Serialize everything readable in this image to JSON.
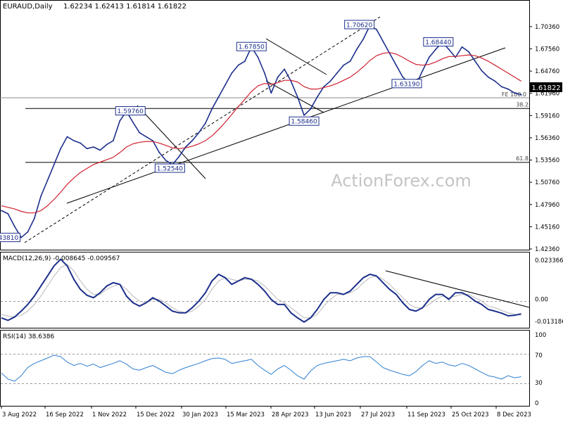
{
  "colors": {
    "price": "#1c2f8c",
    "ma": "#d0202e",
    "macd": "#1c2f8c",
    "signal": "#b8b8b8",
    "rsi": "#2f7fd0",
    "watermark": "#c4c4c4",
    "line": "#000000"
  },
  "chart_data": [
    {
      "type": "line",
      "title": "EURAUD,Daily",
      "ohlc_header": "1.62234 1.62413 1.61814 1.61822",
      "last_price": "1.61822",
      "watermark": "ActionForex.com",
      "ylim": [
        1.4236,
        1.7212
      ],
      "y_ticks": [
        "1.70360",
        "1.67560",
        "1.64760",
        "1.61960",
        "1.59160",
        "1.56360",
        "1.53560",
        "1.50760",
        "1.47960",
        "1.45160",
        "1.42360"
      ],
      "x_ticks": [
        "3 Aug 2022",
        "16 Sep 2022",
        "1 Nov 2022",
        "15 Dec 2022",
        "30 Jan 2023",
        "15 Mar 2023",
        "28 Apr 2023",
        "13 Jun 2023",
        "27 Jul 2023",
        "11 Sep 2023",
        "25 Oct 2023",
        "8 Dec 2023"
      ],
      "x": [
        0,
        5,
        10,
        15,
        20,
        25,
        30,
        35,
        40,
        45,
        50,
        55,
        60,
        65,
        70,
        75,
        80,
        85,
        90,
        95,
        100,
        105,
        110,
        115,
        120,
        125,
        130,
        135,
        140,
        145,
        150,
        155,
        160,
        165,
        170,
        175,
        180,
        185,
        190,
        195,
        200,
        205,
        210,
        215,
        220,
        225,
        230,
        235,
        240,
        245,
        250,
        255,
        260,
        265,
        270,
        275,
        280,
        285,
        290,
        295,
        300,
        305,
        310,
        315,
        320,
        325,
        330,
        335,
        340,
        345,
        350,
        355,
        360,
        365,
        370,
        375,
        380,
        385,
        390,
        395
      ],
      "series": [
        {
          "values": [
            1.472,
            1.468,
            1.452,
            1.438,
            1.445,
            1.462,
            1.49,
            1.51,
            1.53,
            1.55,
            1.565,
            1.56,
            1.557,
            1.55,
            1.552,
            1.548,
            1.555,
            1.56,
            1.585,
            1.597,
            1.583,
            1.57,
            1.565,
            1.56,
            1.545,
            1.535,
            1.53,
            1.54,
            1.552,
            1.56,
            1.57,
            1.582,
            1.6,
            1.615,
            1.63,
            1.645,
            1.655,
            1.66,
            1.678,
            1.665,
            1.645,
            1.62,
            1.64,
            1.65,
            1.635,
            1.615,
            1.592,
            1.6,
            1.615,
            1.628,
            1.635,
            1.645,
            1.655,
            1.66,
            1.675,
            1.688,
            1.705,
            1.7,
            1.685,
            1.67,
            1.655,
            1.64,
            1.632,
            1.63,
            1.648,
            1.665,
            1.675,
            1.684,
            1.675,
            1.665,
            1.678,
            1.672,
            1.66,
            1.648,
            1.64,
            1.635,
            1.628,
            1.625,
            1.62,
            1.618
          ]
        },
        {
          "values": [
            1.478,
            1.476,
            1.474,
            1.471,
            1.469,
            1.469,
            1.472,
            1.478,
            1.486,
            1.495,
            1.505,
            1.513,
            1.52,
            1.525,
            1.53,
            1.533,
            1.536,
            1.539,
            1.545,
            1.552,
            1.556,
            1.558,
            1.559,
            1.559,
            1.557,
            1.554,
            1.551,
            1.55,
            1.551,
            1.553,
            1.556,
            1.56,
            1.566,
            1.574,
            1.583,
            1.593,
            1.603,
            1.612,
            1.622,
            1.629,
            1.632,
            1.631,
            1.633,
            1.636,
            1.636,
            1.634,
            1.628,
            1.625,
            1.625,
            1.627,
            1.629,
            1.632,
            1.636,
            1.64,
            1.646,
            1.653,
            1.661,
            1.667,
            1.67,
            1.671,
            1.669,
            1.665,
            1.66,
            1.656,
            1.655,
            1.656,
            1.659,
            1.663,
            1.666,
            1.666,
            1.667,
            1.668,
            1.667,
            1.664,
            1.66,
            1.655,
            1.65,
            1.645,
            1.64,
            1.635
          ]
        }
      ],
      "annotations": [
        {
          "label": "1.43810",
          "x": 3,
          "y": 1.4381
        },
        {
          "label": "1.59760",
          "x": 98,
          "y": 1.5976
        },
        {
          "label": "1.52540",
          "x": 128,
          "y": 1.5254
        },
        {
          "label": "1.67850",
          "x": 190,
          "y": 1.6785
        },
        {
          "label": "1.58460",
          "x": 230,
          "y": 1.5846
        },
        {
          "label": "1.70620",
          "x": 272,
          "y": 1.7062
        },
        {
          "label": "1.63190",
          "x": 308,
          "y": 1.6319
        },
        {
          "label": "1.68440",
          "x": 332,
          "y": 1.6844
        }
      ],
      "levels": [
        {
          "label": "38.2",
          "y": 1.6005
        },
        {
          "label": "61.8",
          "y": 1.5327
        },
        {
          "label": "FE 100.0",
          "y": 1.614
        }
      ]
    },
    {
      "type": "line",
      "title": "MACD(12,26,9) -0.008645 -0.009567",
      "ylim": [
        -0.0165,
        0.0255
      ],
      "y_ticks": [
        "0.023366",
        "0.00",
        "-0.013186"
      ],
      "x": [
        0,
        5,
        10,
        15,
        20,
        25,
        30,
        35,
        40,
        45,
        50,
        55,
        60,
        65,
        70,
        75,
        80,
        85,
        90,
        95,
        100,
        105,
        110,
        115,
        120,
        125,
        130,
        135,
        140,
        145,
        150,
        155,
        160,
        165,
        170,
        175,
        180,
        185,
        190,
        195,
        200,
        205,
        210,
        215,
        220,
        225,
        230,
        235,
        240,
        245,
        250,
        255,
        260,
        265,
        270,
        275,
        280,
        285,
        290,
        295,
        300,
        305,
        310,
        315,
        320,
        325,
        330,
        335,
        340,
        345,
        350,
        355,
        360,
        365,
        370,
        375,
        380,
        385,
        390,
        395
      ],
      "series": [
        {
          "values": [
            -0.011,
            -0.0125,
            -0.0105,
            -0.007,
            -0.003,
            0.002,
            0.008,
            0.014,
            0.02,
            0.024,
            0.02,
            0.012,
            0.006,
            0.0025,
            0.001,
            0.004,
            0.008,
            0.01,
            0.009,
            0.002,
            -0.002,
            -0.004,
            -0.002,
            0.001,
            -0.001,
            -0.004,
            -0.007,
            -0.008,
            -0.008,
            -0.005,
            -0.001,
            0.004,
            0.011,
            0.015,
            0.013,
            0.009,
            0.011,
            0.013,
            0.012,
            0.009,
            0.005,
            0.0,
            -0.003,
            -0.003,
            -0.008,
            -0.011,
            -0.0135,
            -0.011,
            -0.006,
            0.0,
            0.004,
            0.004,
            0.003,
            0.005,
            0.009,
            0.013,
            0.015,
            0.014,
            0.01,
            0.006,
            0.003,
            -0.002,
            -0.006,
            -0.007,
            -0.005,
            0.0,
            0.003,
            0.003,
            0.0,
            0.004,
            0.004,
            0.002,
            -0.001,
            -0.003,
            -0.006,
            -0.007,
            -0.0082,
            -0.0098,
            -0.0095,
            -0.0086
          ]
        },
        {
          "values": [
            -0.009,
            -0.01,
            -0.0105,
            -0.0095,
            -0.007,
            -0.003,
            0.002,
            0.008,
            0.014,
            0.019,
            0.021,
            0.017,
            0.011,
            0.006,
            0.003,
            0.003,
            0.006,
            0.008,
            0.009,
            0.006,
            0.002,
            -0.001,
            -0.002,
            0.0,
            0.0,
            -0.002,
            -0.005,
            -0.007,
            -0.008,
            -0.007,
            -0.004,
            0.0,
            0.006,
            0.011,
            0.013,
            0.012,
            0.011,
            0.012,
            0.012,
            0.011,
            0.008,
            0.004,
            0.0,
            -0.002,
            -0.005,
            -0.008,
            -0.011,
            -0.011,
            -0.009,
            -0.004,
            0.0,
            0.003,
            0.003,
            0.004,
            0.006,
            0.01,
            0.013,
            0.014,
            0.012,
            0.009,
            0.005,
            0.001,
            -0.003,
            -0.005,
            -0.005,
            -0.003,
            0.0,
            0.002,
            0.001,
            0.002,
            0.003,
            0.003,
            0.001,
            -0.001,
            -0.004,
            -0.005,
            -0.0065,
            -0.008,
            -0.0088,
            -0.0095
          ]
        }
      ]
    },
    {
      "type": "line",
      "title": "RSI(14) 38.6386",
      "ylim": [
        0,
        100
      ],
      "y_ticks": [
        "100",
        "70",
        "30",
        "0"
      ],
      "x": [
        0,
        5,
        10,
        15,
        20,
        25,
        30,
        35,
        40,
        45,
        50,
        55,
        60,
        65,
        70,
        75,
        80,
        85,
        90,
        95,
        100,
        105,
        110,
        115,
        120,
        125,
        130,
        135,
        140,
        145,
        150,
        155,
        160,
        165,
        170,
        175,
        180,
        185,
        190,
        195,
        200,
        205,
        210,
        215,
        220,
        225,
        230,
        235,
        240,
        245,
        250,
        255,
        260,
        265,
        270,
        275,
        280,
        285,
        290,
        295,
        300,
        305,
        310,
        315,
        320,
        325,
        330,
        335,
        340,
        345,
        350,
        355,
        360,
        365,
        370,
        375,
        380,
        385,
        390,
        395
      ],
      "series": [
        {
          "values": [
            44,
            35,
            32,
            40,
            52,
            58,
            62,
            66,
            70,
            68,
            60,
            55,
            58,
            54,
            57,
            52,
            55,
            58,
            62,
            57,
            50,
            48,
            52,
            55,
            50,
            45,
            43,
            48,
            52,
            55,
            58,
            62,
            65,
            66,
            64,
            58,
            60,
            62,
            64,
            55,
            48,
            42,
            50,
            55,
            48,
            40,
            35,
            47,
            55,
            58,
            60,
            62,
            64,
            62,
            66,
            68,
            68,
            60,
            52,
            48,
            45,
            42,
            40,
            46,
            55,
            62,
            58,
            60,
            56,
            54,
            58,
            55,
            50,
            45,
            40,
            38,
            35,
            40,
            37,
            38.6
          ]
        }
      ]
    }
  ]
}
